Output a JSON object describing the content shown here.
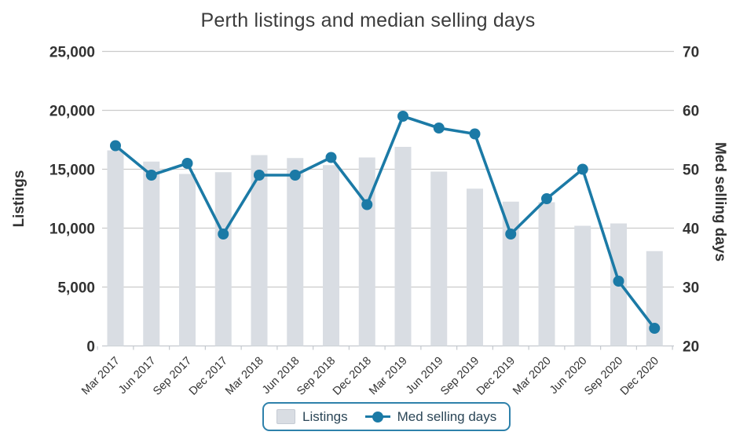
{
  "chart_data": {
    "type": "bar",
    "subtype": "bar+line dual-axis combo",
    "title": "Perth listings and median selling days",
    "categories": [
      "Mar 2017",
      "Jun 2017",
      "Sep 2017",
      "Dec 2017",
      "Mar 2018",
      "Jun 2018",
      "Sep 2018",
      "Dec 2018",
      "Mar 2019",
      "Jun 2019",
      "Sep 2019",
      "Dec 2019",
      "Mar 2020",
      "Jun 2020",
      "Sep 2020",
      "Dec 2020"
    ],
    "series": [
      {
        "name": "Listings",
        "type": "bar",
        "axis": "left",
        "values": [
          16600,
          15650,
          14600,
          14750,
          16200,
          15950,
          15350,
          16000,
          16900,
          14800,
          13350,
          12250,
          12200,
          10200,
          10400,
          8050
        ]
      },
      {
        "name": "Med selling days",
        "type": "line",
        "axis": "right",
        "values": [
          54,
          49,
          51,
          39,
          49,
          49,
          52,
          44,
          59,
          57,
          56,
          39,
          45,
          50,
          31,
          23
        ]
      }
    ],
    "left_axis": {
      "title": "Listings",
      "min": 0,
      "max": 25000,
      "step": 5000,
      "tick_labels": [
        "0",
        "5,000",
        "10,000",
        "15,000",
        "20,000",
        "25,000"
      ]
    },
    "right_axis": {
      "title": "Med selling days",
      "min": 20,
      "max": 70,
      "step": 10,
      "tick_labels": [
        "20",
        "30",
        "40",
        "50",
        "60",
        "70"
      ]
    },
    "x_tick_rotation_deg": -45,
    "grid": true,
    "legend_position": "bottom"
  },
  "colors": {
    "background": "#ffffff",
    "bar": "#d9dde3",
    "line": "#1b7aa6",
    "gridline": "#cbcbcb",
    "axis_line": "#c4c9ce",
    "title_text": "#3c3c3c",
    "tick_text": "#333333",
    "legend_border": "#2e81ab",
    "legend_text": "#2b4657"
  }
}
